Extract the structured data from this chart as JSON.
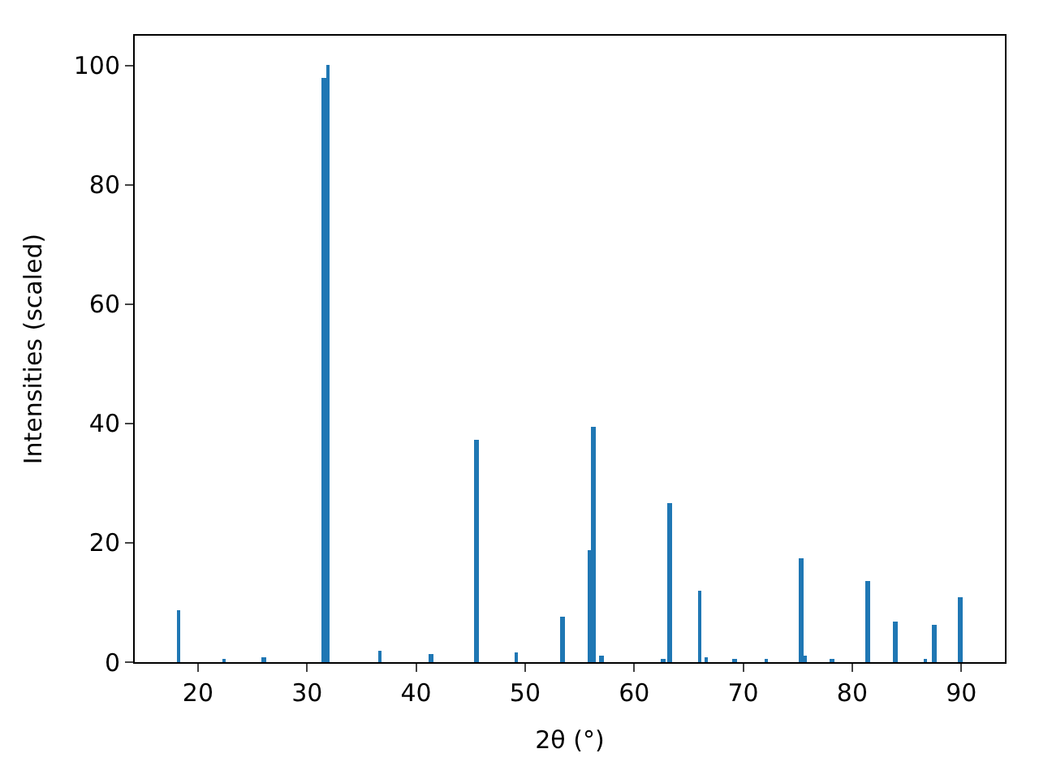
{
  "chart_data": {
    "type": "bar",
    "xlabel": "2θ (°)",
    "ylabel": "Intensities (scaled)",
    "x": [
      18.2,
      22.4,
      26.0,
      31.5,
      31.9,
      36.7,
      41.4,
      45.5,
      49.2,
      53.4,
      55.9,
      56.3,
      57.0,
      62.7,
      63.3,
      66.0,
      66.6,
      69.2,
      72.1,
      75.3,
      75.7,
      78.1,
      81.4,
      83.9,
      86.7,
      87.5,
      89.9
    ],
    "values": [
      8.7,
      0.4,
      0.9,
      98,
      100,
      1.9,
      1.3,
      37.3,
      1.6,
      7.6,
      18.8,
      39.5,
      1.0,
      0.3,
      26.7,
      12.0,
      0.8,
      0.6,
      0.3,
      17.3,
      1.0,
      0.3,
      13.5,
      6.7,
      0.6,
      6.2,
      11.0
    ],
    "color": "#1f77b4",
    "xlim": [
      14.2,
      94.0
    ],
    "xticks": [
      20,
      30,
      40,
      50,
      60,
      70,
      80,
      90
    ],
    "ylim": [
      0,
      105
    ],
    "yticks": [
      0,
      20,
      40,
      60,
      80,
      100
    ]
  }
}
